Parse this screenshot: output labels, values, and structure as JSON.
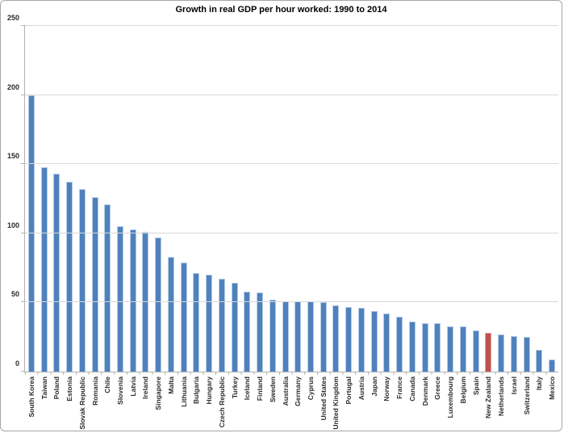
{
  "chart_data": {
    "type": "bar",
    "title": "Growth in real GDP per hour worked: 1990 to 2014",
    "xlabel": "",
    "ylabel": "",
    "ylim": [
      0,
      250
    ],
    "yticks": [
      0,
      50,
      100,
      150,
      200,
      250
    ],
    "grid": true,
    "legend": false,
    "highlighted_category": "New Zealand",
    "categories": [
      "South Korea",
      "Taiwan",
      "Poland",
      "Estonia",
      "Slovak Republic",
      "Romania",
      "Chile",
      "Slovenia",
      "Latvia",
      "Ireland",
      "Singapore",
      "Malta",
      "Lithuania",
      "Bulgaria",
      "Hungary",
      "Czech Republic",
      "Turkey",
      "Iceland",
      "Finland",
      "Sweden",
      "Australia",
      "Germany",
      "Cyprus",
      "United States",
      "United Kingdom",
      "Portugal",
      "Austria",
      "Japan",
      "Norway",
      "France",
      "Canada",
      "Denmark",
      "Greece",
      "Luxembourg",
      "Belgium",
      "Spain",
      "New Zealand",
      "Netherlands",
      "Israel",
      "Switzerland",
      "Italy",
      "Mexico"
    ],
    "values": [
      200,
      148,
      143,
      137,
      132,
      126,
      121,
      105,
      103,
      101,
      97,
      83,
      79,
      71,
      70,
      67,
      64,
      58,
      57,
      52,
      51,
      51,
      51,
      50,
      48,
      47,
      46,
      44,
      42,
      40,
      36,
      35,
      35,
      33,
      33,
      30,
      28,
      27,
      26,
      25,
      16,
      9
    ]
  },
  "colors": {
    "bar": "#4f81bd",
    "bar-edge": "#b7cbe7",
    "highlight": "#c0504d",
    "highlight-edge": "#dba5a3",
    "gridline": "#d9d9d9",
    "axis-line": "#b3b3b3",
    "axis-text": "#2b2b2b",
    "title-text": "#000000",
    "chart-border": "#a6a6a6",
    "background": "#ffffff"
  }
}
